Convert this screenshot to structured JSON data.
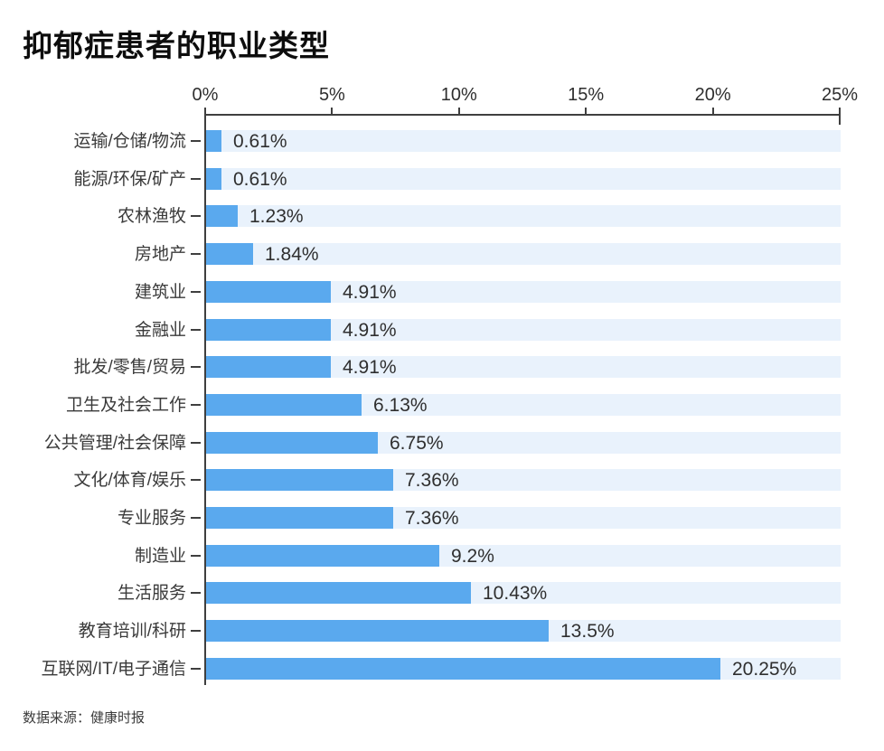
{
  "title": "抑郁症患者的职业类型",
  "source": "数据来源：健康时报",
  "colors": {
    "bar": "#5AA9EE",
    "track": "#E9F2FC",
    "axis": "#3F3F3F",
    "label_text": "#3A3A3A",
    "value_text": "#2F2F2F"
  },
  "chart_data": {
    "type": "bar",
    "orientation": "horizontal",
    "title": "抑郁症患者的职业类型",
    "xlabel": "",
    "ylabel": "",
    "xlim": [
      0,
      25
    ],
    "x_ticks": [
      "0%",
      "5%",
      "10%",
      "15%",
      "20%",
      "25%"
    ],
    "x_tick_values": [
      0,
      5,
      10,
      15,
      20,
      25
    ],
    "grid": false,
    "legend": "none",
    "categories": [
      "运输/仓储/物流",
      "能源/环保/矿产",
      "农林渔牧",
      "房地产",
      "建筑业",
      "金融业",
      "批发/零售/贸易",
      "卫生及社会工作",
      "公共管理/社会保障",
      "文化/体育/娱乐",
      "专业服务",
      "制造业",
      "生活服务",
      "教育培训/科研",
      "互联网/IT/电子通信"
    ],
    "values": [
      0.61,
      0.61,
      1.23,
      1.84,
      4.91,
      4.91,
      4.91,
      6.13,
      6.75,
      7.36,
      7.36,
      9.2,
      10.43,
      13.5,
      20.25
    ],
    "value_labels": [
      "0.61%",
      "0.61%",
      "1.23%",
      "1.84%",
      "4.91%",
      "4.91%",
      "4.91%",
      "6.13%",
      "6.75%",
      "7.36%",
      "7.36%",
      "9.2%",
      "10.43%",
      "13.5%",
      "20.25%"
    ],
    "source": "数据来源：健康时报"
  }
}
